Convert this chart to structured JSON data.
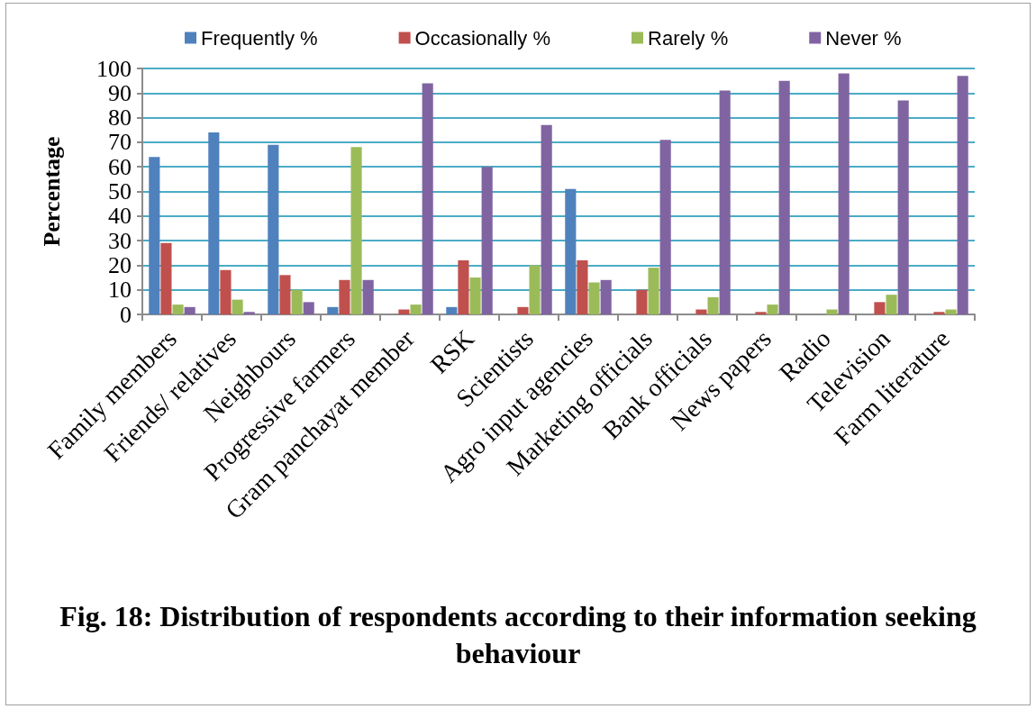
{
  "chart_data": {
    "type": "bar",
    "title": "Fig. 18: Distribution of respondents according to their information seeking behaviour",
    "ylabel": "Percentage",
    "categories": [
      "Family members",
      "Friends/ relatives",
      "Neighbours",
      "Progressive farmers",
      "Gram panchayat member",
      "RSK",
      "Scientists",
      "Agro input agencies",
      "Marketing officials",
      "Bank officials",
      "News papers",
      "Radio",
      "Television",
      "Farm literature"
    ],
    "series": [
      {
        "name": "Frequently %",
        "color": "#4f81bd",
        "values": [
          64,
          74,
          69,
          3,
          0,
          3,
          0,
          51,
          0,
          0,
          0,
          0,
          0,
          0
        ]
      },
      {
        "name": "Occasionally %",
        "color": "#c0504d",
        "values": [
          29,
          18,
          16,
          14,
          2,
          22,
          3,
          22,
          10,
          2,
          1,
          0,
          5,
          1
        ]
      },
      {
        "name": "Rarely %",
        "color": "#9bbb59",
        "values": [
          4,
          6,
          10,
          68,
          4,
          15,
          20,
          13,
          19,
          7,
          4,
          2,
          8,
          2
        ]
      },
      {
        "name": "Never %",
        "color": "#8064a2",
        "values": [
          3,
          1,
          5,
          14,
          94,
          60,
          77,
          14,
          71,
          91,
          95,
          98,
          87,
          97
        ]
      }
    ],
    "ylim": [
      0,
      100
    ],
    "yticks": [
      0,
      10,
      20,
      30,
      40,
      50,
      60,
      70,
      80,
      90,
      100
    ],
    "grid": "y",
    "legend": "top"
  }
}
